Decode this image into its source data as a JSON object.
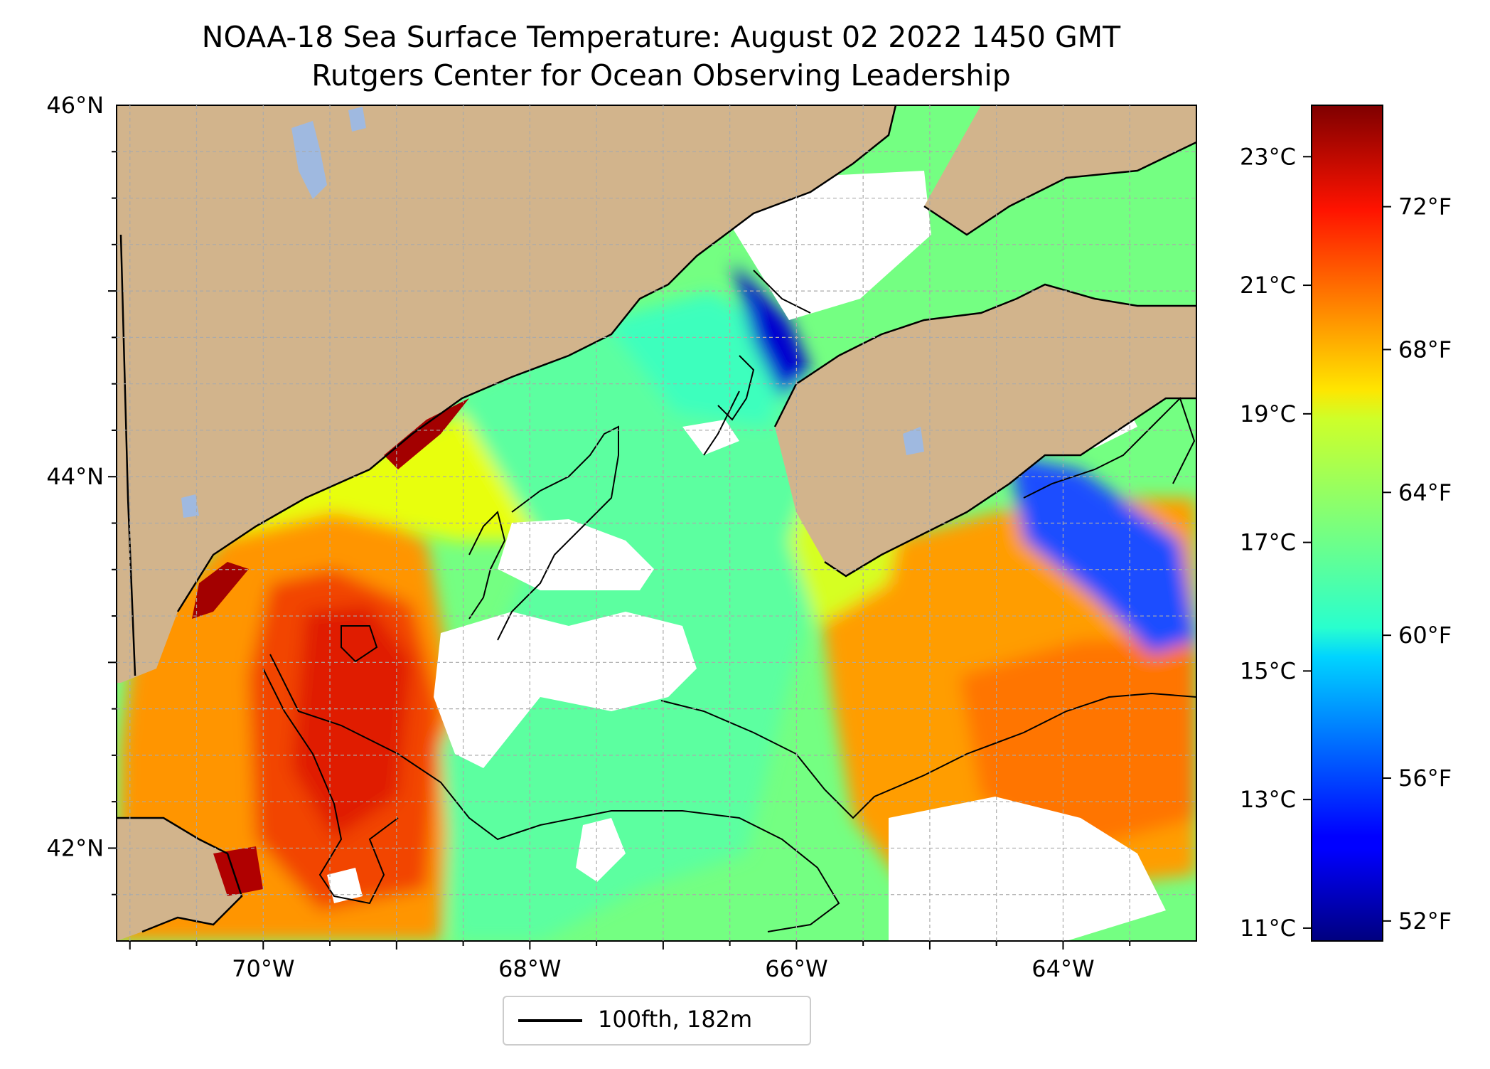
{
  "title": "NOAA-18 Sea Surface Temperature: August 02 2022 1450 GMT",
  "subtitle": "Rutgers Center for Ocean Observing Leadership",
  "map": {
    "lat_range": [
      41.5,
      46.0
    ],
    "lon_range": [
      -71.1,
      -63.0
    ],
    "lat_ticks": [
      {
        "value": 46,
        "label": "46°N"
      },
      {
        "value": 44,
        "label": "44°N"
      },
      {
        "value": 42,
        "label": "42°N"
      }
    ],
    "lon_ticks": [
      {
        "value": -70,
        "label": "70°W"
      },
      {
        "value": -68,
        "label": "68°W"
      },
      {
        "value": -66,
        "label": "66°W"
      },
      {
        "value": -64,
        "label": "64°W"
      }
    ],
    "gridlines": true,
    "land_color": "#d2b48c",
    "lake_color": "#9fb9e0",
    "no_data_color": "#ffffff"
  },
  "legend": {
    "placement": "bottom-center below map",
    "entries": [
      {
        "label": "100fth, 182m",
        "color": "#000000"
      }
    ]
  },
  "colorbar": {
    "colormap": "jet",
    "celsius_ticks": [
      "23°C",
      "21°C",
      "19°C",
      "17°C",
      "15°C",
      "13°C",
      "11°C"
    ],
    "celsius_values": [
      23,
      21,
      19,
      17,
      15,
      13,
      11
    ],
    "fahrenheit_ticks": [
      "72°F",
      "68°F",
      "64°F",
      "60°F",
      "56°F",
      "52°F"
    ],
    "fahrenheit_values": [
      72,
      68,
      64,
      60,
      56,
      52
    ],
    "range_c": [
      10.8,
      23.8
    ]
  }
}
